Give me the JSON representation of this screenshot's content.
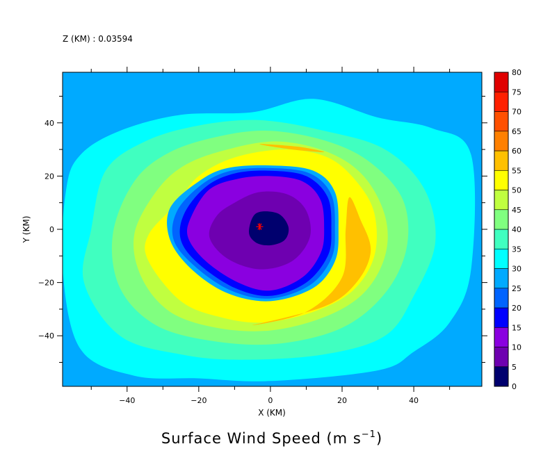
{
  "header": {
    "level_label": "Z (KM) : 0.03594"
  },
  "chart_data": {
    "type": "heatmap",
    "title": "Surface Wind Speed (m s⁻¹)",
    "title_main": "Surface Wind Speed (m s",
    "title_exp": "−1",
    "title_close": ")",
    "xlabel": "X (KM)",
    "ylabel": "Y (KM)",
    "xlim": [
      -58,
      59
    ],
    "ylim": [
      -59,
      59
    ],
    "x_ticks": [
      -40,
      -20,
      0,
      20,
      40
    ],
    "y_ticks": [
      -40,
      -20,
      0,
      20,
      40
    ],
    "x_tick_labels": [
      "−40",
      "−20",
      "0",
      "20",
      "40"
    ],
    "y_tick_labels": [
      "−40",
      "−20",
      "0",
      "20",
      "40"
    ],
    "minor_tick_step": 10,
    "legend_position": "right",
    "colorbar": {
      "levels": [
        0,
        5,
        10,
        15,
        20,
        25,
        30,
        35,
        40,
        45,
        50,
        55,
        60,
        65,
        70,
        75,
        80
      ],
      "labels": [
        "0",
        "5",
        "10",
        "15",
        "20",
        "25",
        "30",
        "35",
        "40",
        "45",
        "50",
        "55",
        "60",
        "65",
        "70",
        "75",
        "80"
      ],
      "colors": [
        "#00006e",
        "#6e00b0",
        "#8a00e0",
        "#0000ff",
        "#0064ff",
        "#00aaff",
        "#00ffff",
        "#40ffc0",
        "#80ff80",
        "#c0ff40",
        "#ffff00",
        "#ffc000",
        "#ff8000",
        "#ff5000",
        "#ff2000",
        "#e00000",
        "#a00000"
      ]
    },
    "storm_center": {
      "x": -3,
      "y": 1,
      "marker": "*",
      "color": "#ff0000"
    },
    "contour_bands": [
      {
        "name": "band-30-35",
        "color": "#00ffff",
        "points": [
          [
            -53,
            28
          ],
          [
            -42,
            37
          ],
          [
            -25,
            43
          ],
          [
            -5,
            44
          ],
          [
            12,
            49
          ],
          [
            30,
            42
          ],
          [
            45,
            38
          ],
          [
            56,
            28
          ],
          [
            56,
            -15
          ],
          [
            50,
            -35
          ],
          [
            40,
            -46
          ],
          [
            30,
            -53
          ],
          [
            0,
            -57
          ],
          [
            -20,
            -56
          ],
          [
            -38,
            -55
          ],
          [
            -53,
            -45
          ],
          [
            -58,
            -15
          ],
          [
            -57,
            15
          ]
        ]
      },
      {
        "name": "band-35-40",
        "color": "#40ffc0",
        "points": [
          [
            -46,
            22
          ],
          [
            -35,
            33
          ],
          [
            -20,
            39
          ],
          [
            -3,
            41
          ],
          [
            15,
            37
          ],
          [
            32,
            30
          ],
          [
            43,
            15
          ],
          [
            46,
            -5
          ],
          [
            40,
            -25
          ],
          [
            32,
            -40
          ],
          [
            15,
            -47
          ],
          [
            -8,
            -49
          ],
          [
            -25,
            -47
          ],
          [
            -42,
            -40
          ],
          [
            -52,
            -20
          ],
          [
            -50,
            0
          ]
        ]
      },
      {
        "name": "band-40-45",
        "color": "#80ff80",
        "points": [
          [
            -38,
            18
          ],
          [
            -28,
            29
          ],
          [
            -14,
            35
          ],
          [
            0,
            37
          ],
          [
            16,
            33
          ],
          [
            28,
            25
          ],
          [
            37,
            11
          ],
          [
            38,
            -7
          ],
          [
            32,
            -24
          ],
          [
            20,
            -37
          ],
          [
            2,
            -43
          ],
          [
            -16,
            -42
          ],
          [
            -32,
            -36
          ],
          [
            -42,
            -22
          ],
          [
            -44,
            -2
          ]
        ]
      },
      {
        "name": "band-45-50",
        "color": "#c0ff40",
        "points": [
          [
            -32,
            14
          ],
          [
            -24,
            24
          ],
          [
            -12,
            30
          ],
          [
            2,
            33
          ],
          [
            16,
            29
          ],
          [
            26,
            20
          ],
          [
            32,
            5
          ],
          [
            32,
            -10
          ],
          [
            26,
            -24
          ],
          [
            15,
            -33
          ],
          [
            0,
            -38
          ],
          [
            -15,
            -37
          ],
          [
            -28,
            -31
          ],
          [
            -36,
            -18
          ],
          [
            -38,
            -2
          ]
        ]
      },
      {
        "name": "band-50-55",
        "color": "#ffff00",
        "points": [
          [
            -26,
            10
          ],
          [
            -20,
            20
          ],
          [
            -10,
            27
          ],
          [
            4,
            30
          ],
          [
            16,
            27
          ],
          [
            24,
            18
          ],
          [
            29,
            6
          ],
          [
            29,
            -10
          ],
          [
            23,
            -23
          ],
          [
            12,
            -31
          ],
          [
            -2,
            -35
          ],
          [
            -14,
            -33
          ],
          [
            -25,
            -27
          ],
          [
            -34,
            -12
          ],
          [
            -34,
            -2
          ]
        ]
      },
      {
        "name": "band-55-60",
        "color": "#ffc000",
        "points": [
          [
            22,
            12
          ],
          [
            25,
            4
          ],
          [
            28,
            -8
          ],
          [
            24,
            -20
          ],
          [
            15,
            -29
          ],
          [
            -5,
            -36
          ],
          [
            10,
            -31
          ],
          [
            20,
            -18
          ],
          [
            21,
            0
          ]
        ]
      },
      {
        "name": "band-55-60-north",
        "color": "#ffc000",
        "points": [
          [
            -3,
            32
          ],
          [
            8,
            31
          ],
          [
            15,
            29
          ],
          [
            6,
            30
          ]
        ]
      },
      {
        "name": "band-20-25",
        "color": "#00aaff",
        "points": [
          [
            -20,
            18
          ],
          [
            -12,
            23
          ],
          [
            0,
            24
          ],
          [
            12,
            22
          ],
          [
            18,
            14
          ],
          [
            19,
            0
          ],
          [
            18,
            -12
          ],
          [
            12,
            -22
          ],
          [
            0,
            -27
          ],
          [
            -12,
            -24
          ],
          [
            -22,
            -15
          ],
          [
            -28,
            -4
          ],
          [
            -28,
            8
          ]
        ]
      },
      {
        "name": "band-15-20",
        "color": "#0064ff",
        "points": [
          [
            -19,
            17
          ],
          [
            -11,
            22
          ],
          [
            0,
            23
          ],
          [
            11,
            21
          ],
          [
            17,
            13
          ],
          [
            18,
            0
          ],
          [
            17,
            -11
          ],
          [
            11,
            -21
          ],
          [
            0,
            -26
          ],
          [
            -11,
            -23
          ],
          [
            -21,
            -14
          ],
          [
            -27,
            -4
          ],
          [
            -26,
            7
          ]
        ]
      },
      {
        "name": "band-10-15",
        "color": "#0000ff",
        "points": [
          [
            -18,
            16
          ],
          [
            -10,
            21
          ],
          [
            0,
            22
          ],
          [
            10,
            20
          ],
          [
            16,
            12
          ],
          [
            17,
            0
          ],
          [
            16,
            -10
          ],
          [
            10,
            -20
          ],
          [
            0,
            -25
          ],
          [
            -10,
            -22
          ],
          [
            -20,
            -13
          ],
          [
            -25,
            -4
          ],
          [
            -24,
            6
          ]
        ]
      },
      {
        "name": "band-5-10",
        "color": "#8a00e0",
        "points": [
          [
            -17,
            15
          ],
          [
            -9,
            19
          ],
          [
            0,
            20
          ],
          [
            9,
            18
          ],
          [
            14,
            11
          ],
          [
            15,
            0
          ],
          [
            14,
            -9
          ],
          [
            9,
            -18
          ],
          [
            0,
            -23
          ],
          [
            -9,
            -20
          ],
          [
            -18,
            -12
          ],
          [
            -23,
            -3
          ],
          [
            -22,
            5
          ]
        ]
      },
      {
        "name": "band-0-5",
        "color": "#6e00b0",
        "points": [
          [
            -10,
            10
          ],
          [
            -3,
            14
          ],
          [
            5,
            13
          ],
          [
            10,
            7
          ],
          [
            11,
            -3
          ],
          [
            6,
            -12
          ],
          [
            -3,
            -15
          ],
          [
            -12,
            -11
          ],
          [
            -17,
            -3
          ],
          [
            -15,
            5
          ]
        ]
      },
      {
        "name": "band-eye",
        "color": "#00006e",
        "points": [
          [
            -4,
            6
          ],
          [
            2,
            6
          ],
          [
            5,
            1
          ],
          [
            4,
            -4
          ],
          [
            0,
            -6
          ],
          [
            -4,
            -5
          ],
          [
            -6,
            -1
          ]
        ]
      }
    ]
  }
}
